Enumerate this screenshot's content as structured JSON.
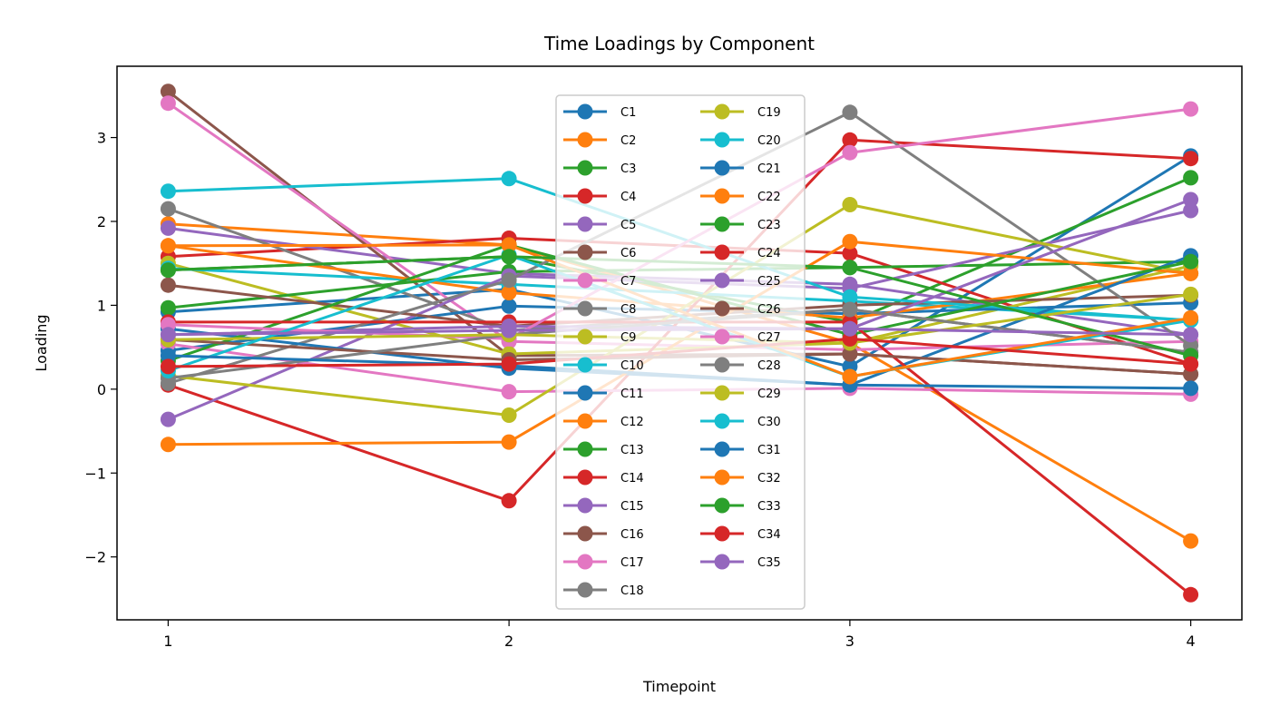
{
  "chart_data": {
    "type": "line",
    "title": "Time Loadings by Component",
    "xlabel": "Timepoint",
    "ylabel": "Loading",
    "x": [
      1,
      2,
      3,
      4
    ],
    "xticks": [
      "1",
      "2",
      "3",
      "4"
    ],
    "yticks": [
      "−2",
      "−1",
      "0",
      "1",
      "2",
      "3"
    ],
    "ytick_values": [
      -2,
      -1,
      0,
      1,
      2,
      3
    ],
    "xlim": [
      0.85,
      4.15
    ],
    "ylim": [
      -2.75,
      3.85
    ],
    "grid": false,
    "legend": {
      "placement": "upper-center",
      "columns": 2
    },
    "series": [
      {
        "name": "C1",
        "color": "#1f77b4",
        "values": [
          0.92,
          1.19,
          0.27,
          2.78
        ]
      },
      {
        "name": "C2",
        "color": "#ff7f0e",
        "values": [
          1.97,
          1.72,
          0.55,
          -1.81
        ]
      },
      {
        "name": "C3",
        "color": "#2ca02c",
        "values": [
          1.42,
          1.58,
          0.8,
          2.52
        ]
      },
      {
        "name": "C4",
        "color": "#d62728",
        "values": [
          1.58,
          1.8,
          1.62,
          0.3
        ]
      },
      {
        "name": "C5",
        "color": "#9467bd",
        "values": [
          1.92,
          1.38,
          1.25,
          0.65
        ]
      },
      {
        "name": "C6",
        "color": "#8c564b",
        "values": [
          3.55,
          0.4,
          0.42,
          0.18
        ]
      },
      {
        "name": "C7",
        "color": "#e377c2",
        "values": [
          3.41,
          0.57,
          0.47,
          0.57
        ]
      },
      {
        "name": "C8",
        "color": "#7f7f7f",
        "values": [
          2.15,
          0.7,
          0.95,
          0.44
        ]
      },
      {
        "name": "C9",
        "color": "#bcbd22",
        "values": [
          1.5,
          0.42,
          0.55,
          1.47
        ]
      },
      {
        "name": "C10",
        "color": "#17becf",
        "values": [
          1.44,
          1.25,
          1.05,
          0.82
        ]
      },
      {
        "name": "C11",
        "color": "#1f77b4",
        "values": [
          0.46,
          0.99,
          0.9,
          1.03
        ]
      },
      {
        "name": "C12",
        "color": "#ff7f0e",
        "values": [
          1.71,
          1.15,
          0.85,
          1.38
        ]
      },
      {
        "name": "C13",
        "color": "#2ca02c",
        "values": [
          0.97,
          1.4,
          1.45,
          1.52
        ]
      },
      {
        "name": "C14",
        "color": "#d62728",
        "values": [
          0.05,
          -1.33,
          2.97,
          2.75
        ]
      },
      {
        "name": "C15",
        "color": "#9467bd",
        "values": [
          -0.36,
          1.35,
          1.2,
          2.13
        ]
      },
      {
        "name": "C16",
        "color": "#8c564b",
        "values": [
          1.24,
          0.75,
          1.0,
          1.12
        ]
      },
      {
        "name": "C17",
        "color": "#e377c2",
        "values": [
          0.54,
          -0.03,
          0.01,
          -0.06
        ]
      },
      {
        "name": "C18",
        "color": "#7f7f7f",
        "values": [
          0.07,
          1.3,
          3.3,
          0.52
        ]
      },
      {
        "name": "C19",
        "color": "#bcbd22",
        "values": [
          0.16,
          -0.31,
          2.2,
          1.38
        ]
      },
      {
        "name": "C20",
        "color": "#17becf",
        "values": [
          2.36,
          2.51,
          1.1,
          0.82
        ]
      },
      {
        "name": "C21",
        "color": "#1f77b4",
        "values": [
          0.72,
          0.25,
          0.05,
          1.59
        ]
      },
      {
        "name": "C22",
        "color": "#ff7f0e",
        "values": [
          -0.66,
          -0.63,
          1.76,
          1.38
        ]
      },
      {
        "name": "C23",
        "color": "#2ca02c",
        "values": [
          0.34,
          1.72,
          0.65,
          1.52
        ]
      },
      {
        "name": "C24",
        "color": "#d62728",
        "values": [
          0.8,
          0.8,
          0.8,
          -2.45
        ]
      },
      {
        "name": "C25",
        "color": "#9467bd",
        "values": [
          0.65,
          0.75,
          0.72,
          2.26
        ]
      },
      {
        "name": "C26",
        "color": "#8c564b",
        "values": [
          0.59,
          0.35,
          0.42,
          0.18
        ]
      },
      {
        "name": "C27",
        "color": "#e377c2",
        "values": [
          0.77,
          0.6,
          2.82,
          3.34
        ]
      },
      {
        "name": "C28",
        "color": "#7f7f7f",
        "values": [
          0.13,
          0.65,
          0.95,
          0.44
        ]
      },
      {
        "name": "C29",
        "color": "#bcbd22",
        "values": [
          0.59,
          0.65,
          0.55,
          1.13
        ]
      },
      {
        "name": "C30",
        "color": "#17becf",
        "values": [
          0.22,
          1.6,
          0.15,
          0.82
        ]
      },
      {
        "name": "C31",
        "color": "#1f77b4",
        "values": [
          0.4,
          0.28,
          0.05,
          0.01
        ]
      },
      {
        "name": "C32",
        "color": "#ff7f0e",
        "values": [
          1.71,
          1.72,
          0.15,
          0.85
        ]
      },
      {
        "name": "C33",
        "color": "#2ca02c",
        "values": [
          1.42,
          1.58,
          1.45,
          0.4
        ]
      },
      {
        "name": "C34",
        "color": "#d62728",
        "values": [
          0.27,
          0.3,
          0.6,
          0.3
        ]
      },
      {
        "name": "C35",
        "color": "#9467bd",
        "values": [
          0.65,
          0.7,
          0.72,
          0.65
        ]
      }
    ]
  }
}
